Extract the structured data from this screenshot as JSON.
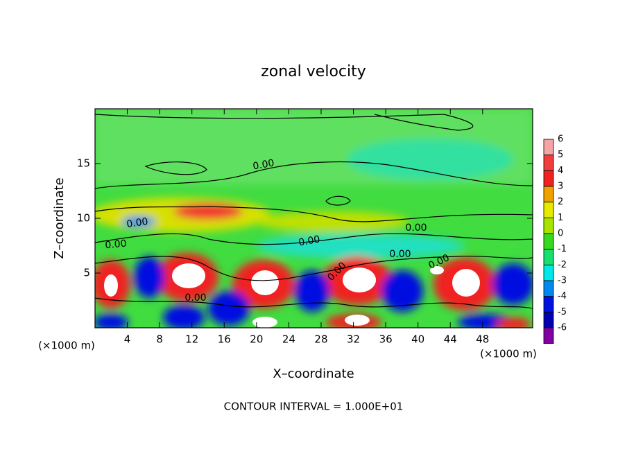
{
  "chart_data": {
    "type": "contour",
    "title": "zonal velocity",
    "x_label": "X–coordinate",
    "y_label": "Z–coordinate",
    "x_unit": "(×1000 m)",
    "y_unit": "(×1000 m)",
    "footer": "CONTOUR INTERVAL = 1.000E+01",
    "xlim": [
      0,
      54.2
    ],
    "xticks": [
      4,
      8,
      12,
      16,
      20,
      24,
      28,
      32,
      36,
      40,
      44,
      48
    ],
    "ylim": [
      0,
      20
    ],
    "yticks": [
      5,
      10,
      15
    ],
    "colorbar_levels": [
      6,
      5,
      4,
      3,
      2,
      1,
      0,
      -1,
      -2,
      -3,
      -4,
      -5,
      -6
    ],
    "colorbar_colors": [
      "#f4a4a4",
      "#f03c3c",
      "#f02020",
      "#f0a000",
      "#e8e800",
      "#a8e400",
      "#38d820",
      "#18e070",
      "#00e8e8",
      "#0088f0",
      "#0010e0",
      "#0000b0",
      "#8000a0"
    ],
    "contour_labels": [
      "0.00",
      "0.00",
      "0.00",
      "0.00",
      "0.00",
      "0.00",
      "0.00",
      "0.00",
      "0.00"
    ]
  }
}
